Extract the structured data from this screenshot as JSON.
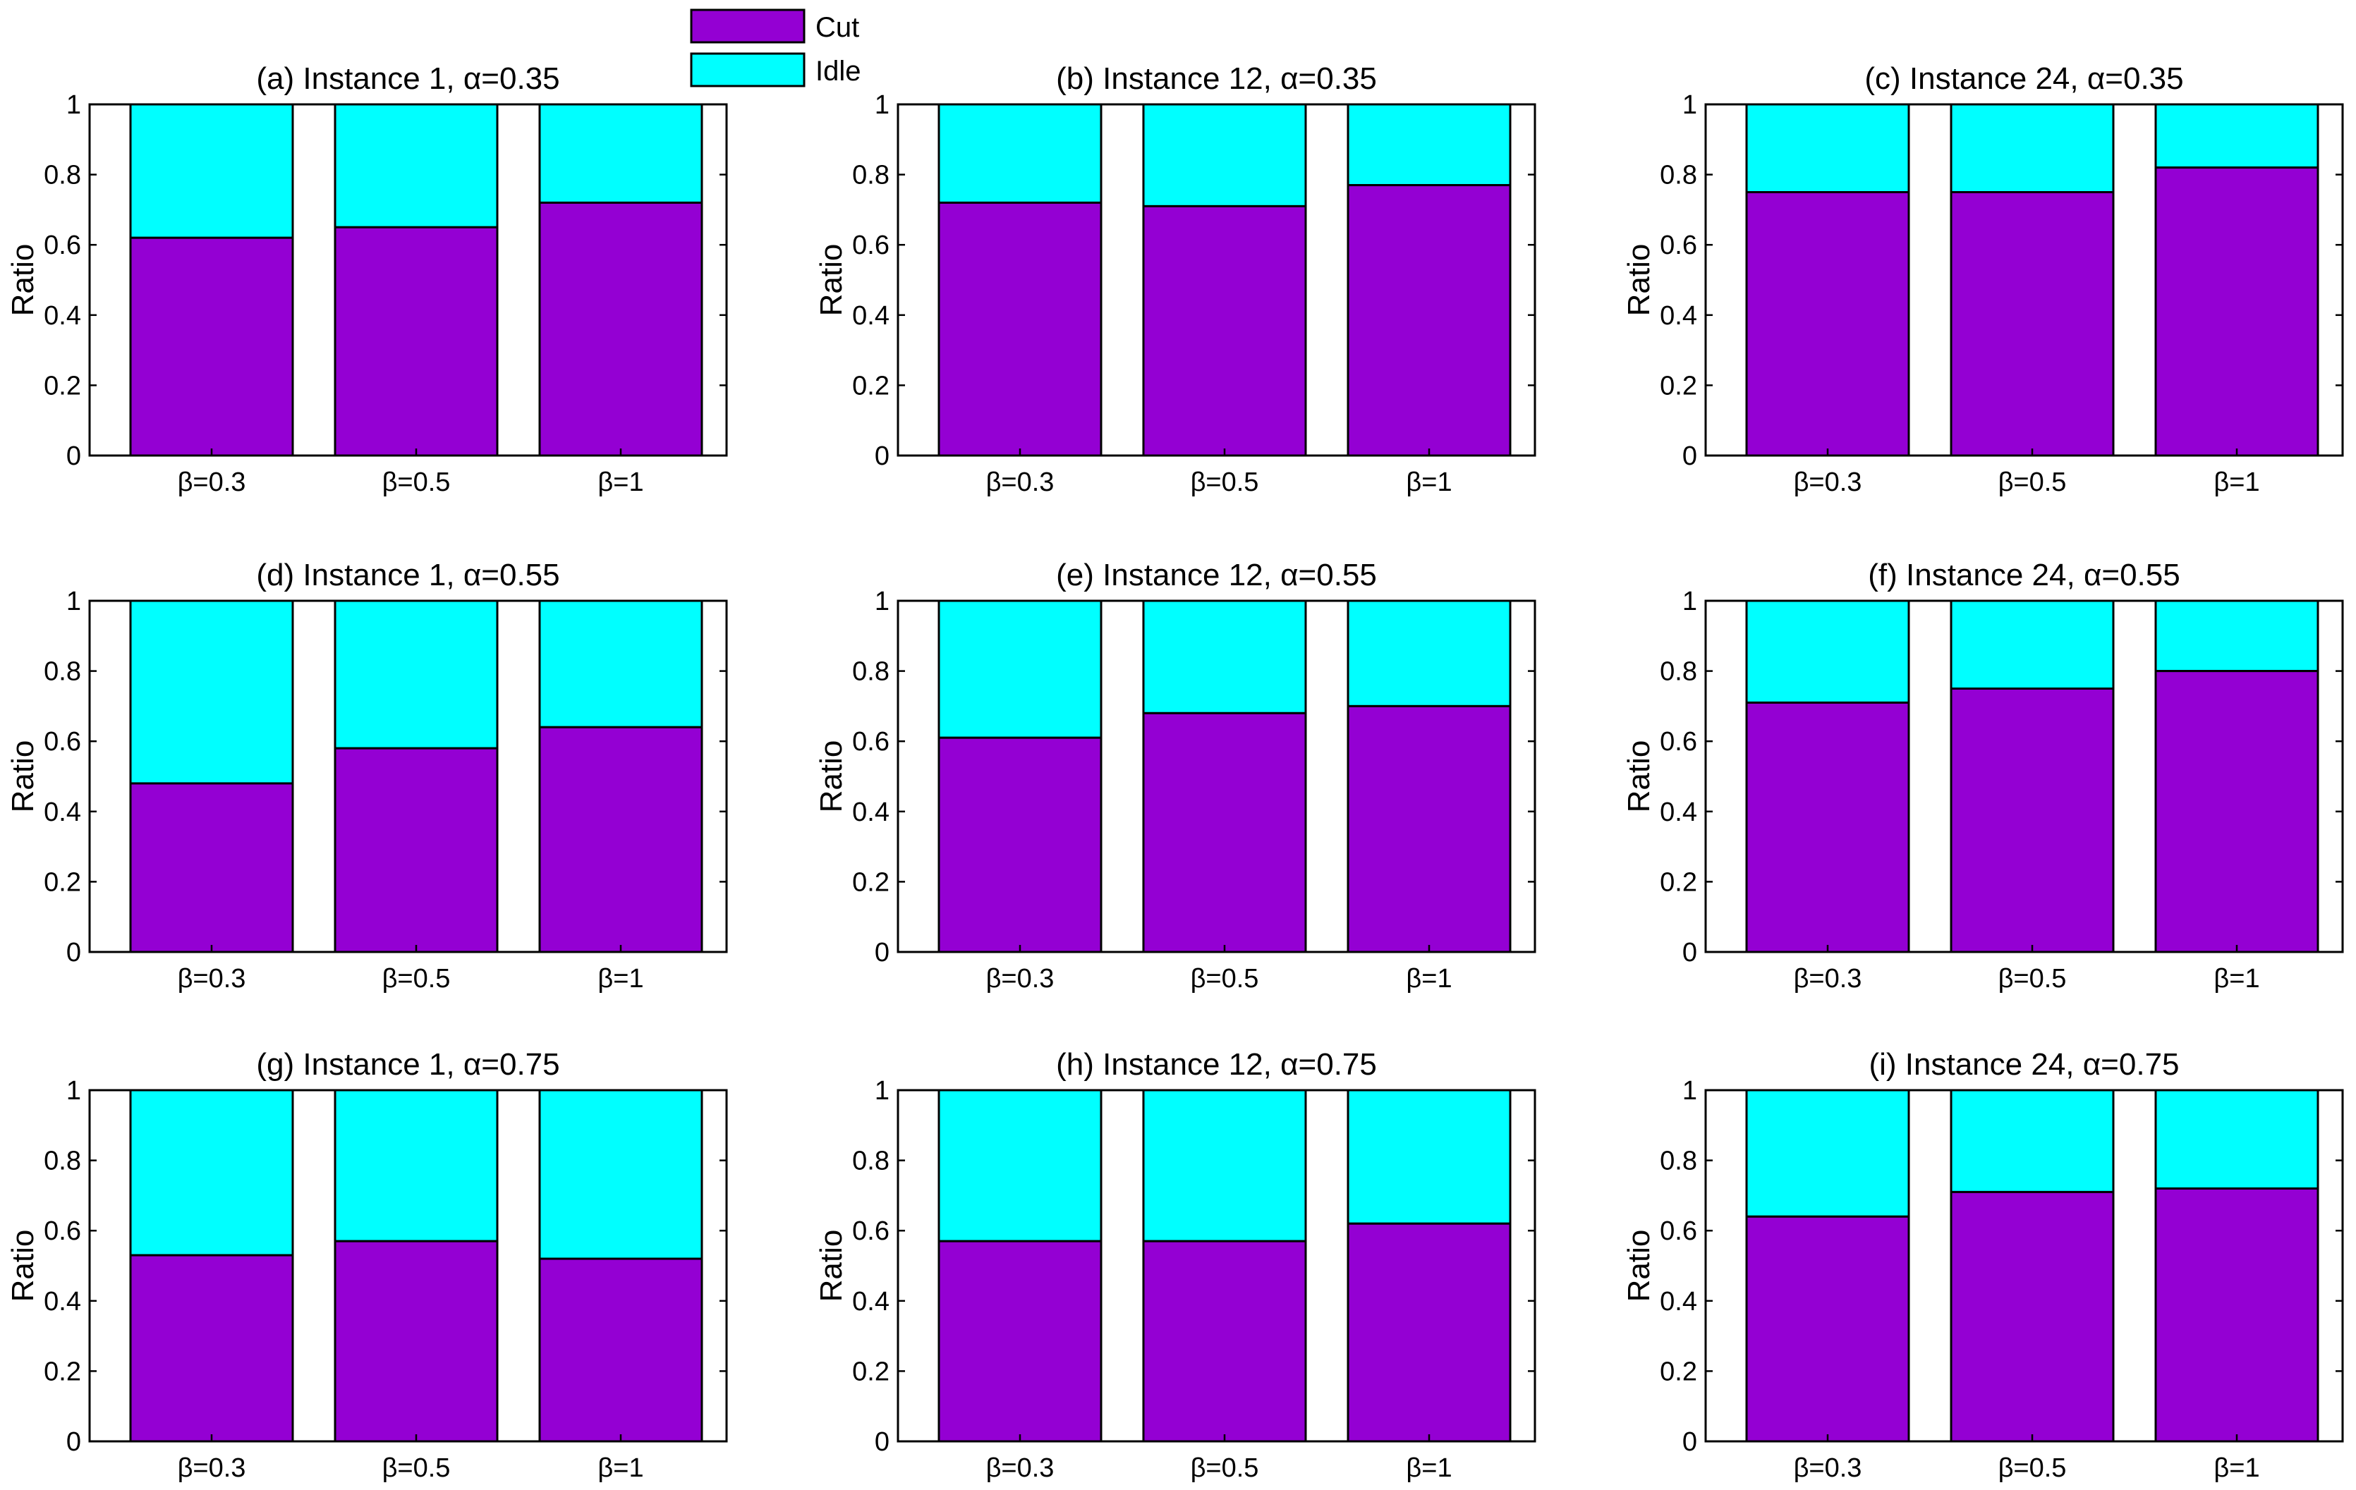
{
  "legend": {
    "items": [
      {
        "label": "Cut",
        "color": "#9400d3"
      },
      {
        "label": "Idle",
        "color": "#00ffff"
      }
    ]
  },
  "colors": {
    "cut": "#9400d3",
    "idle": "#00ffff",
    "axis": "#000000"
  },
  "chart_data": [
    {
      "type": "bar",
      "stacked": true,
      "title": "(a) Instance 1, α=0.35",
      "ylabel": "Ratio",
      "ylim": [
        0,
        1
      ],
      "yticks": [
        "0",
        "0.2",
        "0.4",
        "0.6",
        "0.8",
        "1"
      ],
      "categories": [
        "β=0.3",
        "β=0.5",
        "β=1"
      ],
      "series": [
        {
          "name": "Cut",
          "values": [
            0.62,
            0.65,
            0.72
          ]
        },
        {
          "name": "Idle",
          "values": [
            0.38,
            0.35,
            0.28
          ]
        }
      ]
    },
    {
      "type": "bar",
      "stacked": true,
      "title": "(b) Instance 12, α=0.35",
      "ylabel": "Ratio",
      "ylim": [
        0,
        1
      ],
      "yticks": [
        "0",
        "0.2",
        "0.4",
        "0.6",
        "0.8",
        "1"
      ],
      "categories": [
        "β=0.3",
        "β=0.5",
        "β=1"
      ],
      "series": [
        {
          "name": "Cut",
          "values": [
            0.72,
            0.71,
            0.77
          ]
        },
        {
          "name": "Idle",
          "values": [
            0.28,
            0.29,
            0.23
          ]
        }
      ]
    },
    {
      "type": "bar",
      "stacked": true,
      "title": "(c) Instance 24, α=0.35",
      "ylabel": "Ratio",
      "ylim": [
        0,
        1
      ],
      "yticks": [
        "0",
        "0.2",
        "0.4",
        "0.6",
        "0.8",
        "1"
      ],
      "categories": [
        "β=0.3",
        "β=0.5",
        "β=1"
      ],
      "series": [
        {
          "name": "Cut",
          "values": [
            0.75,
            0.75,
            0.82
          ]
        },
        {
          "name": "Idle",
          "values": [
            0.25,
            0.25,
            0.18
          ]
        }
      ]
    },
    {
      "type": "bar",
      "stacked": true,
      "title": "(d) Instance 1, α=0.55",
      "ylabel": "Ratio",
      "ylim": [
        0,
        1
      ],
      "yticks": [
        "0",
        "0.2",
        "0.4",
        "0.6",
        "0.8",
        "1"
      ],
      "categories": [
        "β=0.3",
        "β=0.5",
        "β=1"
      ],
      "series": [
        {
          "name": "Cut",
          "values": [
            0.48,
            0.58,
            0.64
          ]
        },
        {
          "name": "Idle",
          "values": [
            0.52,
            0.42,
            0.36
          ]
        }
      ]
    },
    {
      "type": "bar",
      "stacked": true,
      "title": "(e) Instance 12, α=0.55",
      "ylabel": "Ratio",
      "ylim": [
        0,
        1
      ],
      "yticks": [
        "0",
        "0.2",
        "0.4",
        "0.6",
        "0.8",
        "1"
      ],
      "categories": [
        "β=0.3",
        "β=0.5",
        "β=1"
      ],
      "series": [
        {
          "name": "Cut",
          "values": [
            0.61,
            0.68,
            0.7
          ]
        },
        {
          "name": "Idle",
          "values": [
            0.39,
            0.32,
            0.3
          ]
        }
      ]
    },
    {
      "type": "bar",
      "stacked": true,
      "title": "(f) Instance 24, α=0.55",
      "ylabel": "Ratio",
      "ylim": [
        0,
        1
      ],
      "yticks": [
        "0",
        "0.2",
        "0.4",
        "0.6",
        "0.8",
        "1"
      ],
      "categories": [
        "β=0.3",
        "β=0.5",
        "β=1"
      ],
      "series": [
        {
          "name": "Cut",
          "values": [
            0.71,
            0.75,
            0.8
          ]
        },
        {
          "name": "Idle",
          "values": [
            0.29,
            0.25,
            0.2
          ]
        }
      ]
    },
    {
      "type": "bar",
      "stacked": true,
      "title": "(g) Instance 1, α=0.75",
      "ylabel": "Ratio",
      "ylim": [
        0,
        1
      ],
      "yticks": [
        "0",
        "0.2",
        "0.4",
        "0.6",
        "0.8",
        "1"
      ],
      "categories": [
        "β=0.3",
        "β=0.5",
        "β=1"
      ],
      "series": [
        {
          "name": "Cut",
          "values": [
            0.53,
            0.57,
            0.52
          ]
        },
        {
          "name": "Idle",
          "values": [
            0.47,
            0.43,
            0.48
          ]
        }
      ]
    },
    {
      "type": "bar",
      "stacked": true,
      "title": "(h) Instance 12, α=0.75",
      "ylabel": "Ratio",
      "ylim": [
        0,
        1
      ],
      "yticks": [
        "0",
        "0.2",
        "0.4",
        "0.6",
        "0.8",
        "1"
      ],
      "categories": [
        "β=0.3",
        "β=0.5",
        "β=1"
      ],
      "series": [
        {
          "name": "Cut",
          "values": [
            0.57,
            0.57,
            0.62
          ]
        },
        {
          "name": "Idle",
          "values": [
            0.43,
            0.43,
            0.38
          ]
        }
      ]
    },
    {
      "type": "bar",
      "stacked": true,
      "title": "(i) Instance 24, α=0.75",
      "ylabel": "Ratio",
      "ylim": [
        0,
        1
      ],
      "yticks": [
        "0",
        "0.2",
        "0.4",
        "0.6",
        "0.8",
        "1"
      ],
      "categories": [
        "β=0.3",
        "β=0.5",
        "β=1"
      ],
      "series": [
        {
          "name": "Cut",
          "values": [
            0.64,
            0.71,
            0.72
          ]
        },
        {
          "name": "Idle",
          "values": [
            0.36,
            0.29,
            0.28
          ]
        }
      ]
    }
  ]
}
